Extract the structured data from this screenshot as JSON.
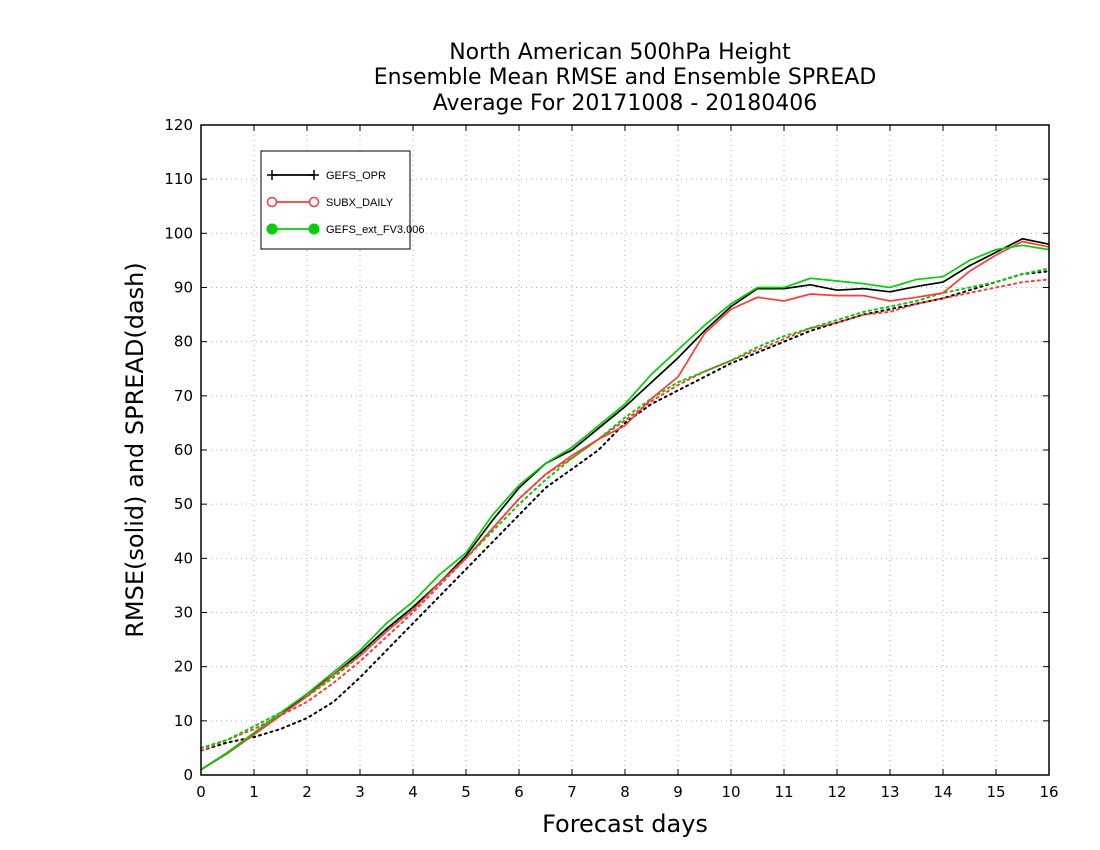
{
  "chart_data": {
    "type": "line",
    "title_lines": [
      "North American 500hPa Height",
      "Ensemble Mean RMSE and Ensemble SPREAD",
      "Average For 20171008 - 20180406"
    ],
    "xlabel": "Forecast days",
    "ylabel": "RMSE(solid) and SPREAD(dash)",
    "xlim": [
      0,
      16
    ],
    "ylim": [
      0,
      120
    ],
    "xticks": [
      0,
      1,
      2,
      3,
      4,
      5,
      6,
      7,
      8,
      9,
      10,
      11,
      12,
      13,
      14,
      15,
      16
    ],
    "yticks": [
      0,
      10,
      20,
      30,
      40,
      50,
      60,
      70,
      80,
      90,
      100,
      110,
      120
    ],
    "grid": true,
    "legend_position": "top-left",
    "x": [
      0,
      0.5,
      1,
      1.5,
      2,
      2.5,
      3,
      3.5,
      4,
      4.5,
      5,
      5.5,
      6,
      6.5,
      7,
      7.5,
      8,
      8.5,
      9,
      9.5,
      10,
      10.5,
      11,
      11.5,
      12,
      12.5,
      13,
      13.5,
      14,
      14.5,
      15,
      15.5,
      16
    ],
    "series": [
      {
        "name": "GEFS_OPR",
        "color": "#000000",
        "marker": "plus",
        "rmse": [
          1,
          4,
          7.5,
          11,
          15,
          18.5,
          22.5,
          27,
          31,
          35.5,
          40.5,
          47,
          53,
          57.5,
          60,
          64,
          68,
          72.5,
          77,
          82,
          86.5,
          89.8,
          89.8,
          90.5,
          89.5,
          89.8,
          89.2,
          90.2,
          91,
          94,
          96.5,
          99,
          98
        ],
        "spread": [
          4.5,
          6,
          7,
          8.5,
          10.5,
          13.5,
          18,
          23,
          28,
          33,
          38,
          43,
          48,
          53,
          56.5,
          60,
          65,
          68.5,
          71,
          73.5,
          76,
          78,
          80,
          82,
          83.5,
          85,
          86,
          87,
          88,
          89.5,
          91,
          92.5,
          93
        ]
      },
      {
        "name": "SUBX_DAILY",
        "color": "#ff3b3b",
        "marker": "open-circle",
        "rmse": [
          1,
          4,
          7.5,
          11,
          14.5,
          18.5,
          22,
          26.5,
          30.5,
          35.5,
          40,
          45.5,
          51,
          55.5,
          59,
          62,
          64.5,
          69.5,
          73.5,
          81.5,
          86,
          88.2,
          87.5,
          88.8,
          88.5,
          88.5,
          87.5,
          88.2,
          89,
          93,
          96,
          98.5,
          97.5
        ],
        "spread": [
          4.5,
          6.5,
          8.5,
          11,
          13.5,
          17,
          21,
          25.5,
          30,
          35,
          40,
          45.5,
          51,
          55.5,
          58.5,
          62,
          65.5,
          69,
          72,
          74.5,
          76.5,
          78.5,
          80.5,
          82.5,
          83.5,
          85,
          85.5,
          87,
          88,
          89,
          90,
          91,
          91.5
        ]
      },
      {
        "name": "GEFS_ext_FV3.006",
        "color": "#00d000",
        "marker": "filled-circle",
        "rmse": [
          1,
          4.2,
          7.8,
          11.5,
          15,
          19,
          23,
          28,
          32,
          37,
          41,
          48,
          53.5,
          57.5,
          60.5,
          64.5,
          68.5,
          74,
          78.5,
          83,
          87,
          90,
          90,
          91.7,
          91.2,
          90.7,
          90,
          91.5,
          92,
          95,
          97,
          97.8,
          97
        ],
        "spread": [
          5,
          6.5,
          9,
          11.5,
          14.5,
          18,
          22,
          26.5,
          31,
          35.5,
          40,
          45,
          50,
          54.5,
          58.5,
          62,
          66,
          69.5,
          72.5,
          74.5,
          76.5,
          79,
          81,
          82.5,
          84,
          85.5,
          86.5,
          87.5,
          89,
          90,
          91,
          92.5,
          93.5
        ]
      }
    ]
  }
}
